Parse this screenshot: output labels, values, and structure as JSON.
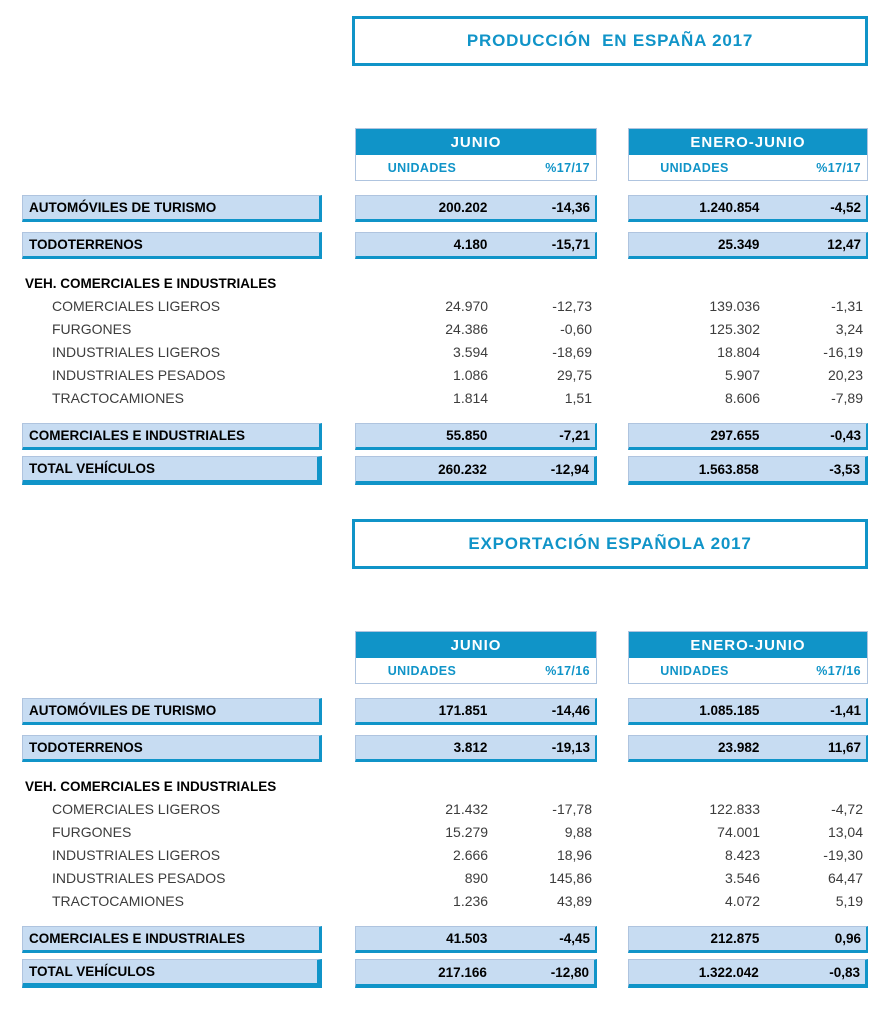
{
  "colors": {
    "accent": "#1094C8",
    "row_fill": "#C7DCF2",
    "box_border": "#AFC4DF"
  },
  "tables": [
    {
      "title": "PRODUCCIÓN  EN ESPAÑA 2017",
      "column_groups": [
        {
          "label": "JUNIO",
          "units_header": "UNIDADES",
          "pct_header": "%17/17"
        },
        {
          "label": "ENERO-JUNIO",
          "units_header": "UNIDADES",
          "pct_header": "%17/17"
        }
      ],
      "rows": [
        {
          "type": "boxed",
          "label": "AUTOMÓVILES DE TURISMO",
          "values": [
            [
              "200.202",
              "-14,36"
            ],
            [
              "1.240.854",
              "-4,52"
            ]
          ]
        },
        {
          "type": "boxed",
          "label": "TODOTERRENOS",
          "values": [
            [
              "4.180",
              "-15,71"
            ],
            [
              "25.349",
              "12,47"
            ]
          ]
        },
        {
          "type": "section",
          "label": "VEH. COMERCIALES E INDUSTRIALES",
          "values": null
        },
        {
          "type": "detail",
          "label": "COMERCIALES LIGEROS",
          "values": [
            [
              "24.970",
              "-12,73"
            ],
            [
              "139.036",
              "-1,31"
            ]
          ]
        },
        {
          "type": "detail",
          "label": "FURGONES",
          "values": [
            [
              "24.386",
              "-0,60"
            ],
            [
              "125.302",
              "3,24"
            ]
          ]
        },
        {
          "type": "detail",
          "label": "INDUSTRIALES LIGEROS",
          "values": [
            [
              "3.594",
              "-18,69"
            ],
            [
              "18.804",
              "-16,19"
            ]
          ]
        },
        {
          "type": "detail",
          "label": "INDUSTRIALES PESADOS",
          "values": [
            [
              "1.086",
              "29,75"
            ],
            [
              "5.907",
              "20,23"
            ]
          ]
        },
        {
          "type": "detail",
          "label": "TRACTOCAMIONES",
          "values": [
            [
              "1.814",
              "1,51"
            ],
            [
              "8.606",
              "-7,89"
            ]
          ]
        },
        {
          "type": "boxed",
          "label": "COMERCIALES E INDUSTRIALES",
          "values": [
            [
              "55.850",
              "-7,21"
            ],
            [
              "297.655",
              "-0,43"
            ]
          ]
        },
        {
          "type": "total",
          "label": "TOTAL VEHÍCULOS",
          "values": [
            [
              "260.232",
              "-12,94"
            ],
            [
              "1.563.858",
              "-3,53"
            ]
          ]
        }
      ]
    },
    {
      "title": "EXPORTACIÓN ESPAÑOLA 2017",
      "column_groups": [
        {
          "label": "JUNIO",
          "units_header": "UNIDADES",
          "pct_header": "%17/16"
        },
        {
          "label": "ENERO-JUNIO",
          "units_header": "UNIDADES",
          "pct_header": "%17/16"
        }
      ],
      "rows": [
        {
          "type": "boxed",
          "label": "AUTOMÓVILES DE TURISMO",
          "values": [
            [
              "171.851",
              "-14,46"
            ],
            [
              "1.085.185",
              "-1,41"
            ]
          ]
        },
        {
          "type": "boxed",
          "label": "TODOTERRENOS",
          "values": [
            [
              "3.812",
              "-19,13"
            ],
            [
              "23.982",
              "11,67"
            ]
          ]
        },
        {
          "type": "section",
          "label": "VEH. COMERCIALES E INDUSTRIALES",
          "values": null
        },
        {
          "type": "detail",
          "label": "COMERCIALES LIGEROS",
          "values": [
            [
              "21.432",
              "-17,78"
            ],
            [
              "122.833",
              "-4,72"
            ]
          ]
        },
        {
          "type": "detail",
          "label": "FURGONES",
          "values": [
            [
              "15.279",
              "9,88"
            ],
            [
              "74.001",
              "13,04"
            ]
          ]
        },
        {
          "type": "detail",
          "label": "INDUSTRIALES LIGEROS",
          "values": [
            [
              "2.666",
              "18,96"
            ],
            [
              "8.423",
              "-19,30"
            ]
          ]
        },
        {
          "type": "detail",
          "label": "INDUSTRIALES PESADOS",
          "values": [
            [
              "890",
              "145,86"
            ],
            [
              "3.546",
              "64,47"
            ]
          ]
        },
        {
          "type": "detail",
          "label": "TRACTOCAMIONES",
          "values": [
            [
              "1.236",
              "43,89"
            ],
            [
              "4.072",
              "5,19"
            ]
          ]
        },
        {
          "type": "boxed",
          "label": "COMERCIALES E INDUSTRIALES",
          "values": [
            [
              "41.503",
              "-4,45"
            ],
            [
              "212.875",
              "0,96"
            ]
          ]
        },
        {
          "type": "total",
          "label": "TOTAL VEHÍCULOS",
          "values": [
            [
              "217.166",
              "-12,80"
            ],
            [
              "1.322.042",
              "-0,83"
            ]
          ]
        }
      ]
    }
  ]
}
